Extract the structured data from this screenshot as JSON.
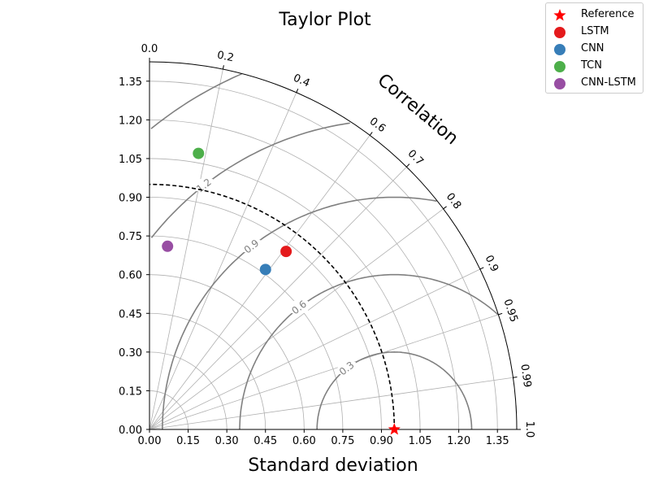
{
  "chart_data": {
    "type": "taylor",
    "title": "Taylor Plot",
    "xlabel": "Standard deviation",
    "angular_label": "Correlation",
    "std_range": [
      0.0,
      1.425
    ],
    "std_ticks": [
      "0.00",
      "0.15",
      "0.30",
      "0.45",
      "0.60",
      "0.75",
      "0.90",
      "1.05",
      "1.20",
      "1.35"
    ],
    "correlation_ticks": [
      "0.0",
      "0.2",
      "0.4",
      "0.6",
      "0.7",
      "0.8",
      "0.9",
      "0.95",
      "0.99",
      "1.0"
    ],
    "rms_contours": [
      "0.3",
      "0.6",
      "0.9",
      "1.2",
      "1.5"
    ],
    "grid": true,
    "legend_position": "top-right",
    "reference": {
      "name": "Reference",
      "std": 0.95,
      "correlation": 1.0,
      "color": "#ff0000",
      "marker": "star"
    },
    "series": [
      {
        "name": "LSTM",
        "x": 0.53,
        "y": 0.69,
        "color": "#e41a1c"
      },
      {
        "name": "CNN",
        "x": 0.45,
        "y": 0.62,
        "color": "#377eb8"
      },
      {
        "name": "TCN",
        "x": 0.19,
        "y": 1.07,
        "color": "#4daf4a"
      },
      {
        "name": "CNN-LSTM",
        "x": 0.07,
        "y": 0.71,
        "color": "#984ea3"
      }
    ]
  }
}
